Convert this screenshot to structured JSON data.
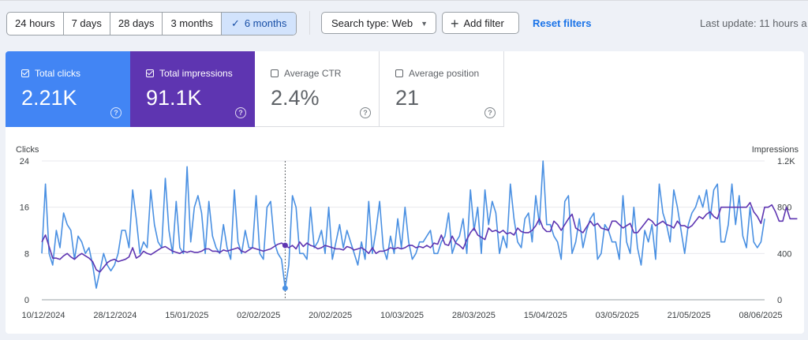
{
  "toolbar": {
    "date_ranges": [
      "24 hours",
      "7 days",
      "28 days",
      "3 months",
      "6 months"
    ],
    "selected_range": "6 months",
    "search_type_label": "Search type: Web",
    "add_filter_label": "Add filter",
    "reset_filters_label": "Reset filters",
    "last_update": "Last update: 11 hours a"
  },
  "cards": [
    {
      "label": "Total clicks",
      "value": "2.21K",
      "checked": true,
      "color": "#4285f4"
    },
    {
      "label": "Total impressions",
      "value": "91.1K",
      "checked": true,
      "color": "#5e35b1"
    },
    {
      "label": "Average CTR",
      "value": "2.4%",
      "checked": false
    },
    {
      "label": "Average position",
      "value": "21",
      "checked": false
    }
  ],
  "chart_data": {
    "type": "line",
    "left_axis_label": "Clicks",
    "right_axis_label": "Impressions",
    "left_ticks": [
      "24",
      "16",
      "8",
      "0"
    ],
    "right_ticks": [
      "1.2K",
      "800",
      "400",
      "0"
    ],
    "left_range": [
      0,
      24
    ],
    "right_range": [
      0,
      1200
    ],
    "x_tick_labels": [
      "10/12/2024",
      "28/12/2024",
      "15/01/2025",
      "02/02/2025",
      "20/02/2025",
      "10/03/2025",
      "28/03/2025",
      "15/04/2025",
      "03/05/2025",
      "21/05/2025",
      "08/06/2025"
    ],
    "grid": true,
    "hover_date": "18/02/2025",
    "series": [
      {
        "name": "Clicks",
        "color": "#4a90e2",
        "values": [
          8,
          20,
          8,
          6,
          12,
          9,
          15,
          13,
          12,
          7,
          11,
          10,
          8,
          9,
          6,
          2,
          5,
          8,
          6,
          5,
          6,
          8,
          12,
          12,
          9,
          19,
          14,
          8,
          10,
          9,
          19,
          13,
          10,
          9,
          21,
          12,
          8,
          17,
          9,
          8,
          23,
          10,
          16,
          18,
          15,
          8,
          17,
          11,
          9,
          8,
          13,
          9,
          7,
          19,
          10,
          8,
          12,
          9,
          9,
          18,
          8,
          7,
          16,
          17,
          10,
          8,
          7,
          2,
          6,
          18,
          16,
          8,
          8,
          7,
          16,
          9,
          10,
          12,
          8,
          16,
          7,
          10,
          13,
          9,
          12,
          10,
          8,
          6,
          10,
          7,
          17,
          8,
          12,
          17,
          9,
          7,
          11,
          8,
          14,
          9,
          16,
          10,
          7,
          8,
          10,
          10,
          11,
          12,
          8,
          8,
          10,
          11,
          15,
          8,
          10,
          11,
          14,
          8,
          19,
          12,
          16,
          8,
          19,
          13,
          17,
          15,
          8,
          11,
          9,
          20,
          14,
          10,
          9,
          14,
          15,
          10,
          18,
          13,
          24,
          13,
          13,
          11,
          10,
          7,
          17,
          18,
          8,
          10,
          14,
          9,
          12,
          14,
          15,
          7,
          8,
          13,
          12,
          10,
          10,
          7,
          18,
          10,
          8,
          16,
          9,
          6,
          12,
          10,
          13,
          7,
          20,
          15,
          13,
          10,
          19,
          16,
          12,
          8,
          13,
          15,
          16,
          18,
          16,
          19,
          14,
          19,
          20,
          10,
          10,
          13,
          20,
          13,
          18,
          11,
          9,
          16,
          10,
          9,
          10,
          14
        ]
      },
      {
        "name": "Impressions",
        "color": "#5e35b1",
        "values": [
          500,
          560,
          460,
          360,
          360,
          350,
          380,
          400,
          370,
          350,
          380,
          400,
          380,
          360,
          330,
          260,
          240,
          280,
          320,
          340,
          350,
          330,
          340,
          350,
          370,
          450,
          360,
          380,
          420,
          400,
          390,
          410,
          430,
          450,
          460,
          440,
          420,
          410,
          400,
          420,
          410,
          420,
          410,
          410,
          420,
          440,
          440,
          420,
          420,
          410,
          430,
          420,
          430,
          440,
          450,
          420,
          410,
          430,
          450,
          440,
          430,
          420,
          430,
          440,
          460,
          480,
          490,
          470,
          450,
          470,
          440,
          500,
          460,
          490,
          470,
          460,
          440,
          450,
          470,
          460,
          450,
          440,
          440,
          430,
          460,
          450,
          430,
          440,
          450,
          430,
          400,
          450,
          400,
          420,
          420,
          430,
          450,
          440,
          450,
          440,
          450,
          470,
          470,
          450,
          460,
          450,
          470,
          450,
          490,
          480,
          560,
          480,
          470,
          550,
          490,
          470,
          440,
          520,
          580,
          620,
          560,
          540,
          520,
          620,
          590,
          600,
          580,
          600,
          570,
          580,
          560,
          620,
          590,
          580,
          580,
          600,
          640,
          700,
          620,
          590,
          590,
          680,
          650,
          600,
          650,
          700,
          740,
          620,
          600,
          580,
          630,
          680,
          640,
          660,
          620,
          610,
          600,
          680,
          680,
          650,
          620,
          640,
          660,
          580,
          580,
          620,
          660,
          700,
          680,
          640,
          660,
          680,
          650,
          640,
          620,
          680,
          640,
          640,
          620,
          640,
          680,
          720,
          700,
          740,
          760,
          720,
          700,
          800,
          800,
          800,
          800,
          800,
          800,
          800,
          800,
          840,
          760,
          720,
          660,
          800,
          800,
          820,
          760,
          680,
          680,
          800,
          700,
          700,
          700
        ]
      }
    ]
  }
}
